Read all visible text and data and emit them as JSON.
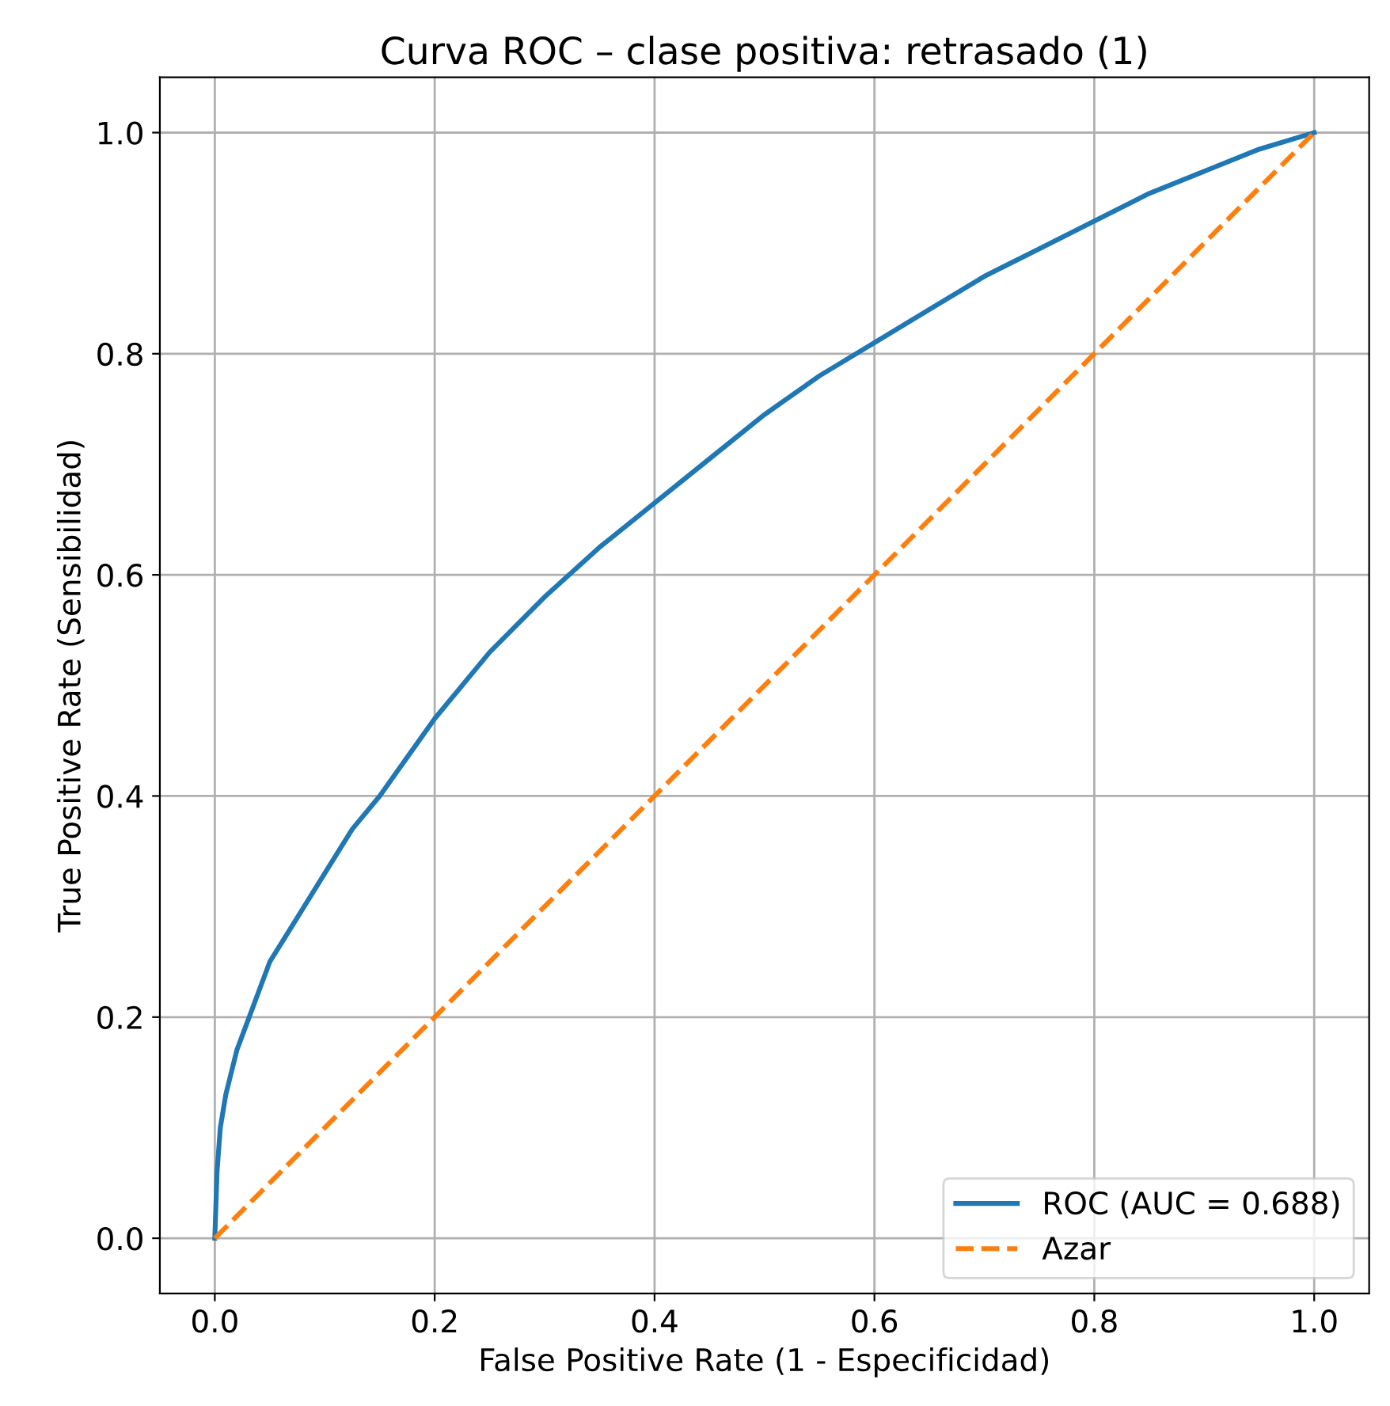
{
  "chart_data": {
    "type": "line",
    "title": "Curva ROC – clase positiva: retrasado (1)",
    "xlabel": "False Positive Rate (1 - Especificidad)",
    "ylabel": "True Positive Rate (Sensibilidad)",
    "series": [
      {
        "name": "ROC (AUC = 0.688)",
        "color": "#1f77b4",
        "line_style": "solid",
        "x": [
          0,
          0.002,
          0.005,
          0.01,
          0.02,
          0.035,
          0.05,
          0.075,
          0.1,
          0.125,
          0.15,
          0.2,
          0.25,
          0.3,
          0.35,
          0.4,
          0.45,
          0.5,
          0.55,
          0.6,
          0.65,
          0.7,
          0.75,
          0.8,
          0.85,
          0.9,
          0.95,
          1.0
        ],
        "values": [
          0,
          0.06,
          0.1,
          0.13,
          0.17,
          0.21,
          0.25,
          0.29,
          0.33,
          0.37,
          0.4,
          0.47,
          0.53,
          0.58,
          0.625,
          0.665,
          0.705,
          0.745,
          0.78,
          0.81,
          0.84,
          0.87,
          0.895,
          0.92,
          0.945,
          0.965,
          0.985,
          1.0
        ]
      },
      {
        "name": "Azar",
        "color": "#ff7f0e",
        "line_style": "dashed",
        "x": [
          0,
          1
        ],
        "values": [
          0,
          1
        ]
      }
    ],
    "xlim": [
      -0.05,
      1.05
    ],
    "ylim": [
      -0.05,
      1.05
    ],
    "xticks": [
      {
        "value": 0,
        "label": "0.0"
      },
      {
        "value": 0.2,
        "label": "0.2"
      },
      {
        "value": 0.4,
        "label": "0.4"
      },
      {
        "value": 0.6,
        "label": "0.6"
      },
      {
        "value": 0.8,
        "label": "0.8"
      },
      {
        "value": 1,
        "label": "1.0"
      }
    ],
    "yticks": [
      {
        "value": 0,
        "label": "0.0"
      },
      {
        "value": 0.2,
        "label": "0.2"
      },
      {
        "value": 0.4,
        "label": "0.4"
      },
      {
        "value": 0.6,
        "label": "0.6"
      },
      {
        "value": 0.8,
        "label": "0.8"
      },
      {
        "value": 1,
        "label": "1.0"
      }
    ],
    "grid": true,
    "legend": "bottom right",
    "marker": "none"
  }
}
